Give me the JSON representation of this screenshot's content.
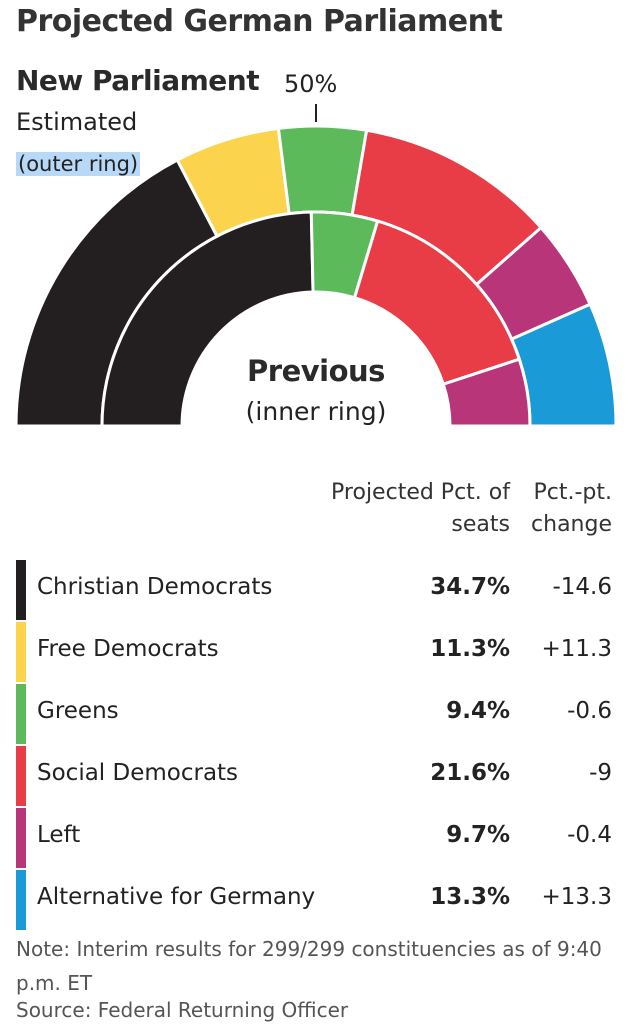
{
  "title": "Projected German Parliament",
  "labels": {
    "new_parliament": "New Parliament",
    "estimated": "Estimated",
    "outer_ring": "(outer ring)",
    "fifty": "50%",
    "previous": "Previous",
    "inner_ring": "(inner ring)"
  },
  "table": {
    "col_projected": "Projected Pct. of seats",
    "col_change": "Pct.-pt. change"
  },
  "colors": {
    "cdu": "#231f20",
    "fdp": "#fcd34d",
    "greens": "#5dba5a",
    "spd": "#e83c47",
    "left": "#b8357a",
    "afd": "#1b9ad8"
  },
  "chart_data": {
    "type": "pie",
    "subtype": "semicircle-double-ring",
    "categories": [
      "Christian Democrats",
      "Free Democrats",
      "Greens",
      "Social Democrats",
      "Left",
      "Alternative for Germany"
    ],
    "series": [
      {
        "name": "New Parliament",
        "values": [
          34.7,
          11.3,
          9.4,
          21.6,
          9.7,
          13.3
        ]
      },
      {
        "name": "Previous",
        "values": [
          49.3,
          0,
          10.0,
          30.6,
          10.1,
          0
        ]
      }
    ],
    "rows": [
      {
        "party": "Christian Democrats",
        "projected": "34.7%",
        "change": "-14.6",
        "color_key": "cdu"
      },
      {
        "party": "Free Democrats",
        "projected": "11.3%",
        "change": "+11.3",
        "color_key": "fdp"
      },
      {
        "party": "Greens",
        "projected": "9.4%",
        "change": "-0.6",
        "color_key": "greens"
      },
      {
        "party": "Social Democrats",
        "projected": "21.6%",
        "change": "-9",
        "color_key": "spd"
      },
      {
        "party": "Left",
        "projected": "9.7%",
        "change": "-0.4",
        "color_key": "left"
      },
      {
        "party": "Alternative for Germany",
        "projected": "13.3%",
        "change": "+13.3",
        "color_key": "afd"
      }
    ]
  },
  "note": "Note: Interim results for 299/299 constituencies as of 9:40 p.m. ET",
  "source": "Source: Federal Returning Officer"
}
